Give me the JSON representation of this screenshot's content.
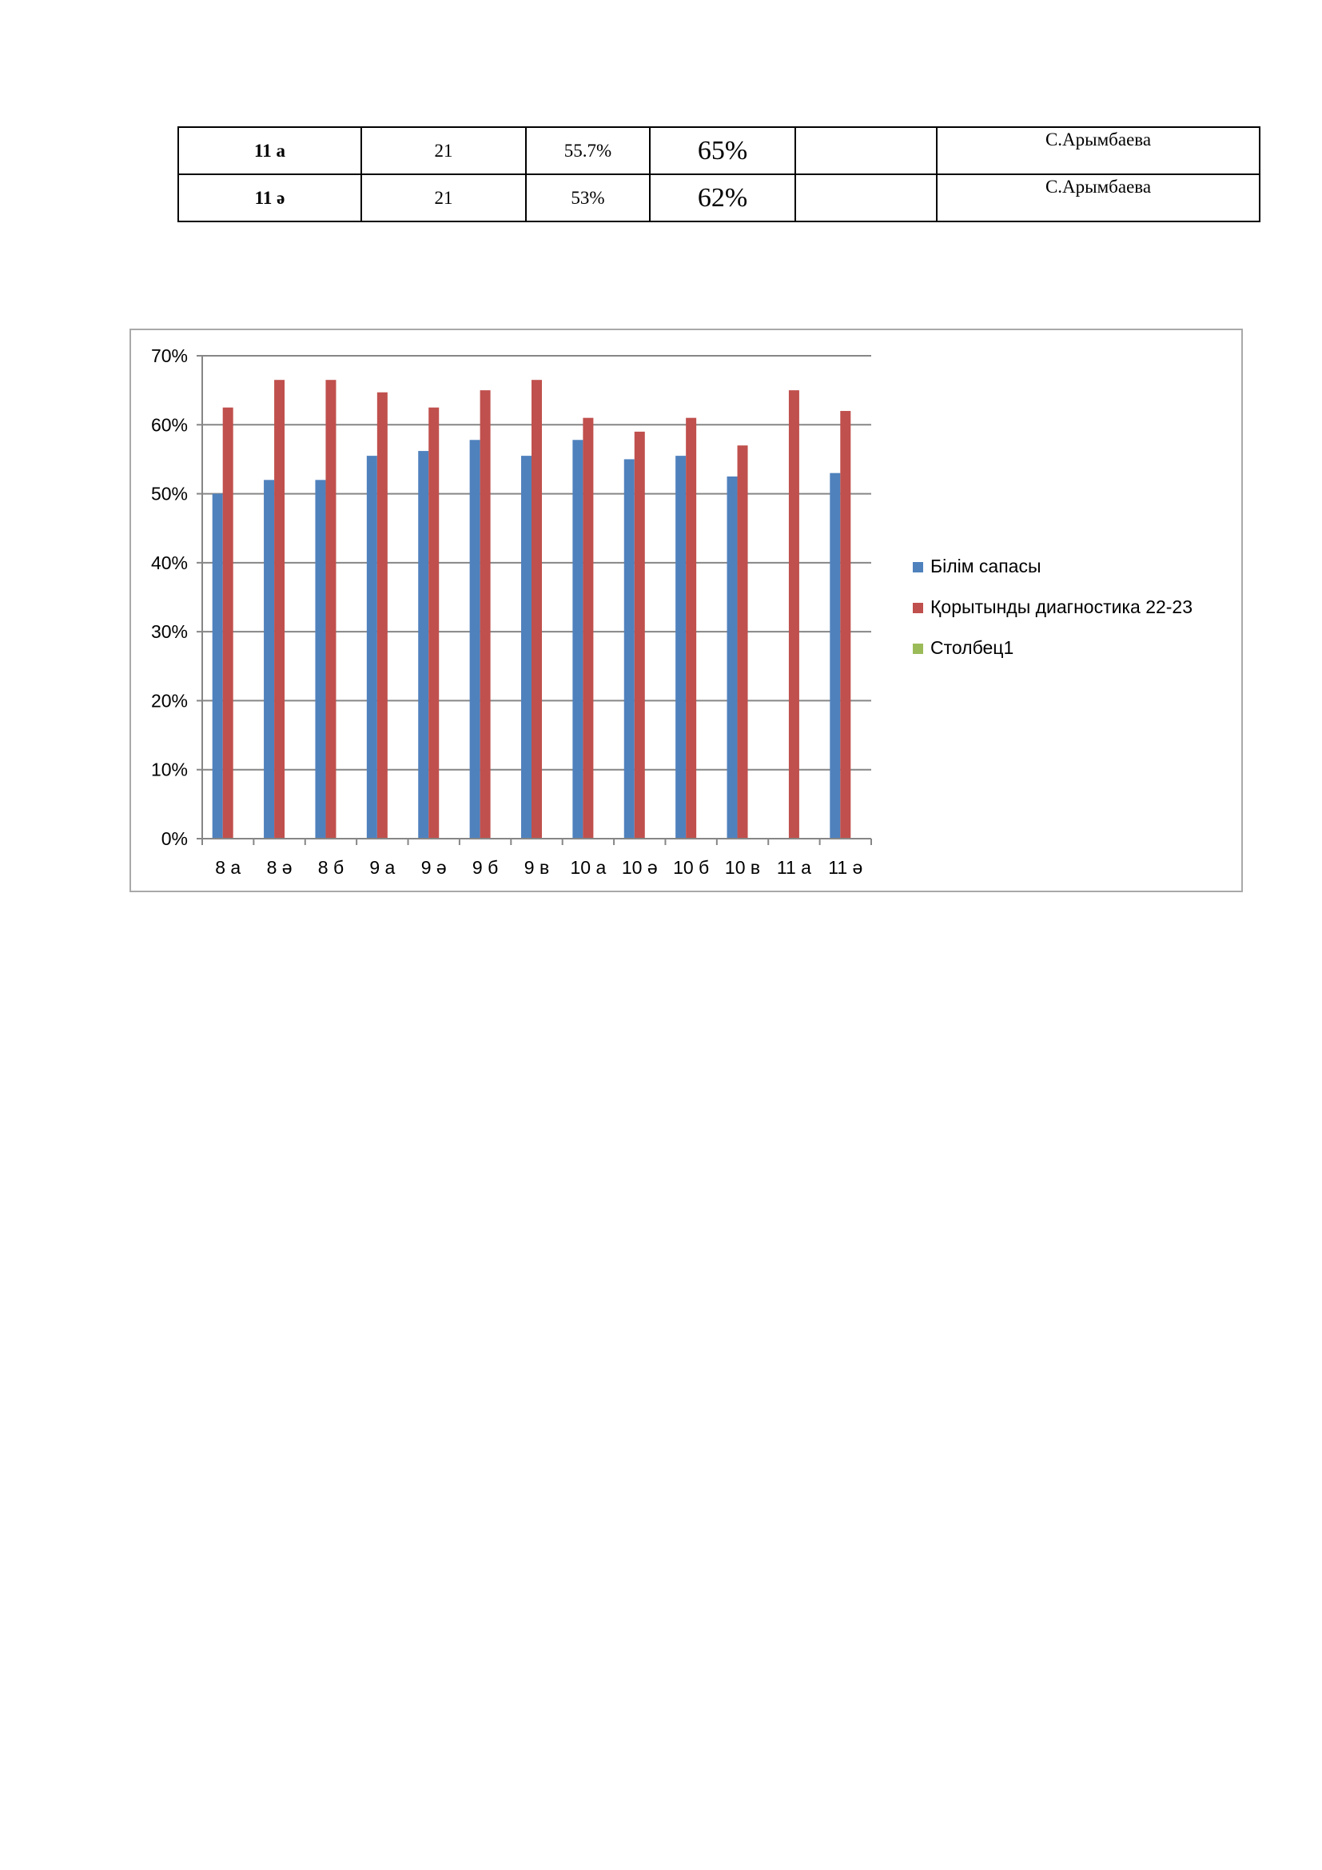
{
  "table": {
    "rows": [
      {
        "cls": "11 а",
        "count": "21",
        "quality": "55.7%",
        "diagnostic": "65%",
        "empty": "",
        "teacher": "С.Арымбаева"
      },
      {
        "cls": "11 ә",
        "count": "21",
        "quality": "53%",
        "diagnostic": "62%",
        "empty": "",
        "teacher": "С.Арымбаева"
      }
    ]
  },
  "chart_data": {
    "type": "bar",
    "categories": [
      "8 а",
      "8 ә",
      "8 б",
      "9 а",
      "9 ә",
      "9 б",
      "9 в",
      "10 а",
      "10 ә",
      "10 б",
      "10 в",
      "11 а",
      "11 ә"
    ],
    "series": [
      {
        "name": "Білім сапасы",
        "color": "#4f81bd",
        "values": [
          50,
          52,
          52,
          55.5,
          56.2,
          57.8,
          55.5,
          57.8,
          55,
          55.5,
          52.5,
          null,
          53
        ]
      },
      {
        "name": "Қорытынды диагностика 22-23",
        "color": "#c0504d",
        "values": [
          62.5,
          66.5,
          66.5,
          64.7,
          62.5,
          65,
          66.5,
          61,
          59,
          61,
          57,
          65,
          62
        ]
      },
      {
        "name": "Столбец1",
        "color": "#9bbb59",
        "values": [
          null,
          null,
          null,
          null,
          null,
          null,
          null,
          null,
          null,
          null,
          null,
          null,
          null
        ]
      }
    ],
    "y_ticks": [
      "0%",
      "10%",
      "20%",
      "30%",
      "40%",
      "50%",
      "60%",
      "70%"
    ],
    "ylim": [
      0,
      70
    ],
    "grid": true,
    "legend_position": "right"
  }
}
